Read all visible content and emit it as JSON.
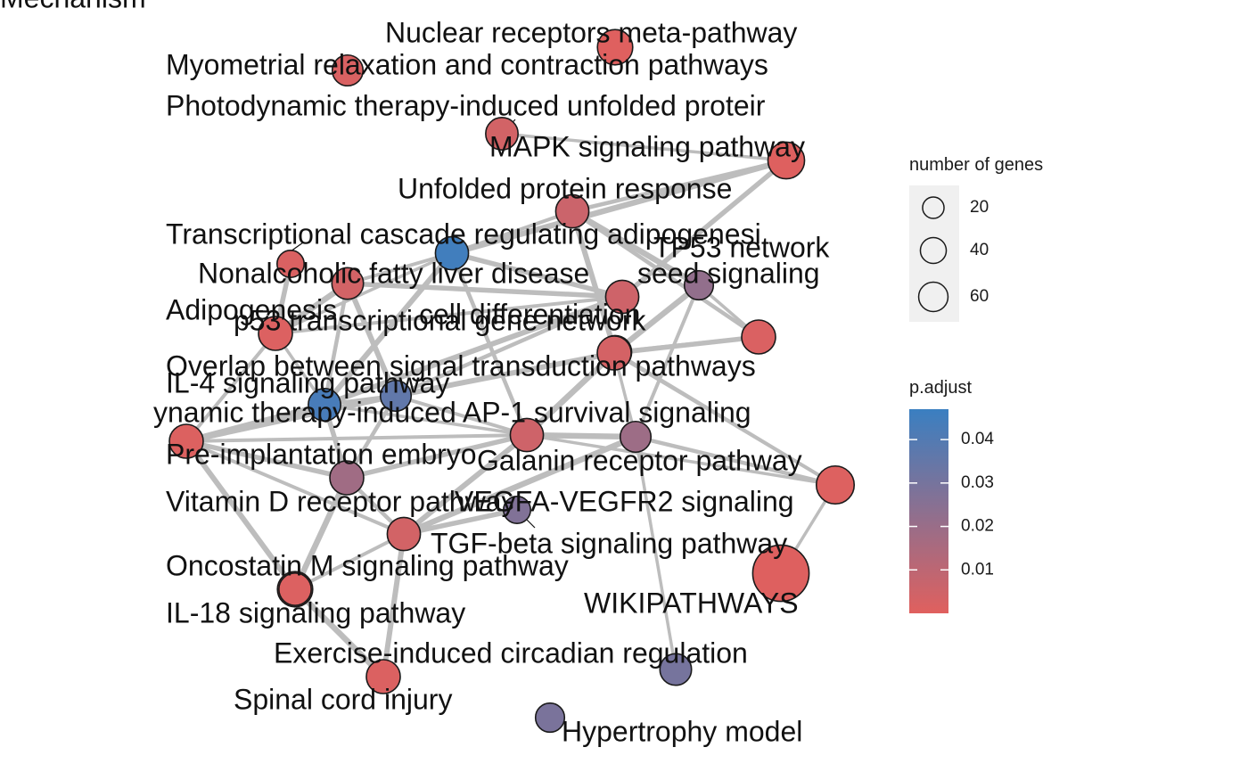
{
  "network": {
    "color_low": "#e0605e",
    "color_high": "#3a7fc1",
    "edge_color": "#bdbdbd",
    "nodes": [
      {
        "id": "nuclear",
        "label": "Nuclear receptors meta-pathway",
        "p": 0.0003,
        "genes": 18
      },
      {
        "id": "myometrial",
        "label": "Myometrial relaxation and contraction pathways",
        "p": 0.002,
        "genes": 12
      },
      {
        "id": "photo_unfolded",
        "label": "Photodynamic therapy-induced unfolded proteir",
        "p": 0.004,
        "genes": 14
      },
      {
        "id": "mapk",
        "label": "MAPK signaling pathway",
        "p": 0.0005,
        "genes": 20
      },
      {
        "id": "unfolded",
        "label": "Unfolded protein response",
        "p": 0.006,
        "genes": 15
      },
      {
        "id": "transcriptional",
        "label": "Transcriptional cascade regulating adipogenesi",
        "p": 0.045,
        "genes": 15
      },
      {
        "id": "tp53",
        "label": "TP53 network",
        "p": 0.022,
        "genes": 10
      },
      {
        "id": "nafld",
        "label": "Nonalcoholic fatty liver disease",
        "p": 0.005,
        "genes": 15
      },
      {
        "id": "cell_diff",
        "label": "cell differentiation",
        "p": 0.004,
        "genes": 13
      },
      {
        "id": "adipogenesis",
        "label": "Adipogenesis",
        "p": 0.0012,
        "genes": 16
      },
      {
        "id": "p53",
        "label": "p53 transcriptional gene network",
        "p": 0.0018,
        "genes": 16
      },
      {
        "id": "seed_signaling",
        "label": "seed signaling",
        "p": 0.003,
        "genes": 15
      },
      {
        "id": "overlap",
        "label": "Overlap between signal transduction pathways",
        "p": 0.0035,
        "genes": 16
      },
      {
        "id": "il4",
        "label": "IL-4 signaling pathway",
        "p": 0.043,
        "genes": 14
      },
      {
        "id": "mechanism",
        "label": "Mechanism",
        "p": 0.036,
        "genes": 12
      },
      {
        "id": "ap1",
        "label": "ynamic therapy-induced AP-1 survival signaling",
        "p": 0.005,
        "genes": 15
      },
      {
        "id": "preimplantation",
        "label": "Pre-implantation embryo",
        "p": 0.001,
        "genes": 16
      },
      {
        "id": "galanin",
        "label": "Galanin receptor pathway",
        "p": 0.019,
        "genes": 12
      },
      {
        "id": "vitd",
        "label": "Vitamin D receptor pathway",
        "p": 0.018,
        "genes": 16
      },
      {
        "id": "vegfa",
        "label": "VEGFA-VEGFR2 signaling",
        "p": 0.0008,
        "genes": 22
      },
      {
        "id": "tgfb",
        "label": "TGF-beta signaling pathway",
        "p": 0.004,
        "genes": 15
      },
      {
        "id": "vegfa_small",
        "label": "",
        "p": 0.027,
        "genes": 8
      },
      {
        "id": "oncostatin",
        "label": "Oncostatin M signaling pathway",
        "p": 0.001,
        "genes": 18
      },
      {
        "id": "wikipathways",
        "label": "WIKIPATHWAYS",
        "p": 0.0006,
        "genes": 62
      },
      {
        "id": "il18",
        "label": "IL-18 signaling pathway",
        "p": 0.0012,
        "genes": 14
      },
      {
        "id": "exercise",
        "label": "Exercise-induced circadian regulation",
        "p": 0.03,
        "genes": 13
      },
      {
        "id": "spinal",
        "label": "Spinal cord injury",
        "p": 0.0015,
        "genes": 16
      },
      {
        "id": "hypertrophy",
        "label": "Hypertrophy model",
        "p": 0.029,
        "genes": 10
      },
      {
        "id": "small_left",
        "label": "",
        "p": 0.002,
        "genes": 8
      }
    ],
    "edges": [
      [
        "mapk",
        "unfolded"
      ],
      [
        "mapk",
        "transcriptional"
      ],
      [
        "mapk",
        "photo_unfolded"
      ],
      [
        "mapk",
        "nafld"
      ],
      [
        "unfolded",
        "transcriptional"
      ],
      [
        "unfolded",
        "seed_signaling"
      ],
      [
        "unfolded",
        "p53"
      ],
      [
        "unfolded",
        "tp53"
      ],
      [
        "transcriptional",
        "adipogenesis"
      ],
      [
        "transcriptional",
        "nafld"
      ],
      [
        "transcriptional",
        "cell_diff"
      ],
      [
        "transcriptional",
        "il4"
      ],
      [
        "transcriptional",
        "ap1"
      ],
      [
        "tp53",
        "seed_signaling"
      ],
      [
        "tp53",
        "p53"
      ],
      [
        "tp53",
        "overlap"
      ],
      [
        "tp53",
        "galanin"
      ],
      [
        "seed_signaling",
        "overlap"
      ],
      [
        "seed_signaling",
        "p53"
      ],
      [
        "seed_signaling",
        "ap1"
      ],
      [
        "seed_signaling",
        "vegfa"
      ],
      [
        "nafld",
        "cell_diff"
      ],
      [
        "nafld",
        "adipogenesis"
      ],
      [
        "nafld",
        "il4"
      ],
      [
        "nafld",
        "mechanism"
      ],
      [
        "adipogenesis",
        "cell_diff"
      ],
      [
        "adipogenesis",
        "il4"
      ],
      [
        "adipogenesis",
        "small_left"
      ],
      [
        "adipogenesis",
        "preimplantation"
      ],
      [
        "cell_diff",
        "mechanism"
      ],
      [
        "cell_diff",
        "il4"
      ],
      [
        "overlap",
        "ap1"
      ],
      [
        "overlap",
        "galanin"
      ],
      [
        "overlap",
        "p53"
      ],
      [
        "overlap",
        "vegfa"
      ],
      [
        "overlap",
        "mechanism"
      ],
      [
        "il4",
        "mechanism"
      ],
      [
        "il4",
        "preimplantation"
      ],
      [
        "il4",
        "ap1"
      ],
      [
        "il4",
        "vitd"
      ],
      [
        "mechanism",
        "ap1"
      ],
      [
        "mechanism",
        "preimplantation"
      ],
      [
        "mechanism",
        "vitd"
      ],
      [
        "ap1",
        "galanin"
      ],
      [
        "ap1",
        "vegfa"
      ],
      [
        "ap1",
        "vitd"
      ],
      [
        "ap1",
        "preimplantation"
      ],
      [
        "ap1",
        "tgfb"
      ],
      [
        "galanin",
        "vegfa"
      ],
      [
        "galanin",
        "tgfb"
      ],
      [
        "galanin",
        "exercise"
      ],
      [
        "preimplantation",
        "vitd"
      ],
      [
        "preimplantation",
        "tgfb"
      ],
      [
        "preimplantation",
        "oncostatin"
      ],
      [
        "vitd",
        "tgfb"
      ],
      [
        "vitd",
        "oncostatin"
      ],
      [
        "vitd",
        "il18"
      ],
      [
        "tgfb",
        "vegfa_small"
      ],
      [
        "tgfb",
        "il18"
      ],
      [
        "tgfb",
        "spinal"
      ],
      [
        "oncostatin",
        "spinal"
      ],
      [
        "il18",
        "spinal"
      ],
      [
        "wikipathways",
        "vegfa"
      ]
    ]
  },
  "legend": {
    "size_title": "number of genes",
    "size_items": [
      {
        "label": "20",
        "genes": 20
      },
      {
        "label": "40",
        "genes": 40
      },
      {
        "label": "60",
        "genes": 60
      }
    ],
    "color_title": "p.adjust",
    "color_min": 0.0,
    "color_max": 0.047,
    "color_ticks": [
      {
        "label": "0.04",
        "value": 0.04
      },
      {
        "label": "0.03",
        "value": 0.03
      },
      {
        "label": "0.02",
        "value": 0.02
      },
      {
        "label": "0.01",
        "value": 0.01
      }
    ]
  }
}
